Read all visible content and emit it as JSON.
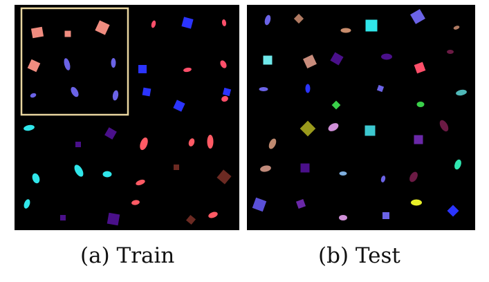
{
  "captions": {
    "train": "(a) Train",
    "test": "(b) Test"
  },
  "colors": {
    "background": "#000000",
    "highlight_box": "#e9d6a0"
  },
  "train": {
    "highlight_box": true,
    "shapes": [
      {
        "type": "square",
        "color": "#f08c7f"
      },
      {
        "type": "square",
        "color": "#f08c7f"
      },
      {
        "type": "square",
        "color": "#f08c7f"
      },
      {
        "type": "square",
        "color": "#f08c7f"
      },
      {
        "type": "ellipse",
        "color": "#6b63e6"
      },
      {
        "type": "ellipse",
        "color": "#6b63e6"
      },
      {
        "type": "ellipse",
        "color": "#6b63e6"
      },
      {
        "type": "ellipse",
        "color": "#6b63e6"
      },
      {
        "type": "ellipse",
        "color": "#6b63e6"
      },
      {
        "type": "ellipse",
        "color": "#ff4f6a"
      },
      {
        "type": "square",
        "color": "#2b34ff"
      },
      {
        "type": "ellipse",
        "color": "#ff4f6a"
      },
      {
        "type": "square",
        "color": "#2b34ff"
      },
      {
        "type": "ellipse",
        "color": "#ff4f6a"
      },
      {
        "type": "ellipse",
        "color": "#ff4f6a"
      },
      {
        "type": "square",
        "color": "#2b34ff"
      },
      {
        "type": "square",
        "color": "#2b34ff"
      },
      {
        "type": "square",
        "color": "#2b34ff"
      },
      {
        "type": "ellipse",
        "color": "#ff4f6a"
      },
      {
        "type": "ellipse",
        "color": "#30e6ea"
      },
      {
        "type": "square",
        "color": "#4a108a"
      },
      {
        "type": "square",
        "color": "#4a108a"
      },
      {
        "type": "ellipse",
        "color": "#ff5a64"
      },
      {
        "type": "ellipse",
        "color": "#ff5a64"
      },
      {
        "type": "ellipse",
        "color": "#ff5a64"
      },
      {
        "type": "ellipse",
        "color": "#30e6ea"
      },
      {
        "type": "ellipse",
        "color": "#30e6ea"
      },
      {
        "type": "ellipse",
        "color": "#30e6ea"
      },
      {
        "type": "square",
        "color": "#6b2a22"
      },
      {
        "type": "ellipse",
        "color": "#ff5a64"
      },
      {
        "type": "square",
        "color": "#6b2a22"
      },
      {
        "type": "ellipse",
        "color": "#30e6ea"
      },
      {
        "type": "ellipse",
        "color": "#ff5a64"
      },
      {
        "type": "square",
        "color": "#4a108a"
      },
      {
        "type": "square",
        "color": "#4a108a"
      },
      {
        "type": "square",
        "color": "#6b2a22"
      },
      {
        "type": "ellipse",
        "color": "#ff5a64"
      }
    ]
  },
  "test": {
    "shapes": [
      {
        "type": "ellipse",
        "color": "#6b63e6"
      },
      {
        "type": "square",
        "color": "#b07a62"
      },
      {
        "type": "ellipse",
        "color": "#c88c6c"
      },
      {
        "type": "square",
        "color": "#30e6ea"
      },
      {
        "type": "square",
        "color": "#6b63e6"
      },
      {
        "type": "ellipse",
        "color": "#b07a62"
      },
      {
        "type": "square",
        "color": "#6fe8ea"
      },
      {
        "type": "square",
        "color": "#c88c7c"
      },
      {
        "type": "square",
        "color": "#4a108a"
      },
      {
        "type": "ellipse",
        "color": "#4a108a"
      },
      {
        "type": "ellipse",
        "color": "#6b1a44"
      },
      {
        "type": "square",
        "color": "#ff4f6a"
      },
      {
        "type": "ellipse",
        "color": "#6b63e6"
      },
      {
        "type": "ellipse",
        "color": "#2b34ff"
      },
      {
        "type": "square",
        "color": "#6b63e6"
      },
      {
        "type": "ellipse",
        "color": "#4fb8b8"
      },
      {
        "type": "square",
        "color": "#3ad04a"
      },
      {
        "type": "ellipse",
        "color": "#3ad04a"
      },
      {
        "type": "square",
        "color": "#9a9a1c"
      },
      {
        "type": "ellipse",
        "color": "#d090d8"
      },
      {
        "type": "square",
        "color": "#3cc8d0"
      },
      {
        "type": "ellipse",
        "color": "#6b1a44"
      },
      {
        "type": "ellipse",
        "color": "#c08a70"
      },
      {
        "type": "square",
        "color": "#6a28a8"
      },
      {
        "type": "ellipse",
        "color": "#30e6b0"
      },
      {
        "type": "ellipse",
        "color": "#c08a7a"
      },
      {
        "type": "square",
        "color": "#4a108a"
      },
      {
        "type": "ellipse",
        "color": "#7fb0e0"
      },
      {
        "type": "ellipse",
        "color": "#6b63e6"
      },
      {
        "type": "ellipse",
        "color": "#6b1a44"
      },
      {
        "type": "square",
        "color": "#5a50d8"
      },
      {
        "type": "square",
        "color": "#6a28a8"
      },
      {
        "type": "ellipse",
        "color": "#e8f028"
      },
      {
        "type": "square",
        "color": "#2b34ff"
      },
      {
        "type": "ellipse",
        "color": "#d090d8"
      },
      {
        "type": "square",
        "color": "#6b63e6"
      }
    ]
  }
}
